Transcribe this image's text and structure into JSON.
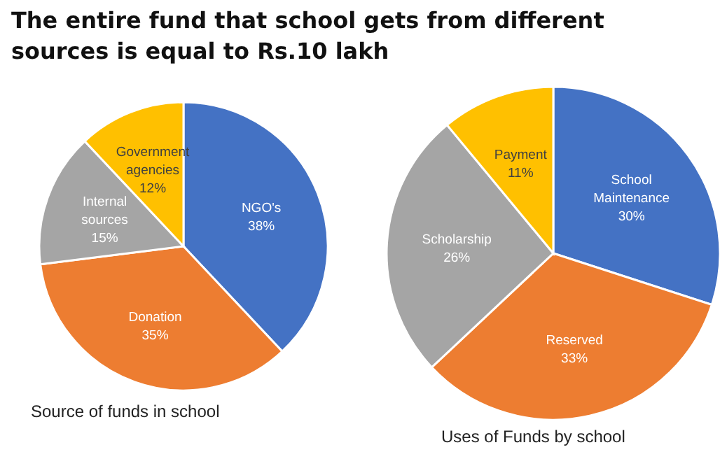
{
  "chart_data": [
    {
      "type": "pie",
      "title": "The entire fund that school gets from different sources is equal to Rs.10 lakh",
      "categories": [
        "NGO's",
        "Donation",
        "Internal sources",
        "Government agencies"
      ],
      "values": [
        38,
        35,
        15,
        12
      ],
      "value_labels": [
        "38%",
        "35%",
        "15%",
        "12%"
      ],
      "colors": [
        "#4472c4",
        "#ed7d31",
        "#a5a5a5",
        "#ffc000"
      ],
      "annotations": [
        "Source of funds in school"
      ]
    },
    {
      "type": "pie",
      "categories": [
        "School Maintenance",
        "Reserved",
        "Scholarship",
        "Payment"
      ],
      "values": [
        30,
        33,
        26,
        11
      ],
      "value_labels": [
        "30%",
        "33%",
        "26%",
        "11%"
      ],
      "colors": [
        "#4472c4",
        "#ed7d31",
        "#a5a5a5",
        "#ffc000"
      ],
      "annotations": [
        "Uses of Funds by school"
      ]
    }
  ]
}
